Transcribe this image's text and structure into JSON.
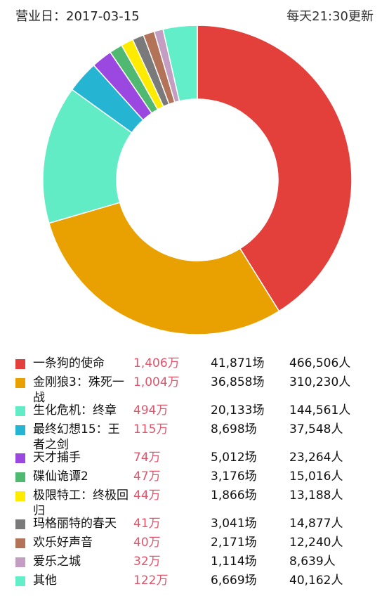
{
  "header": {
    "business_day": "营业日：2017-03-15",
    "update_note": "每天21:30更新"
  },
  "chart_data": {
    "type": "pie",
    "donut": true,
    "title": "",
    "categories": [
      "一条狗的使命",
      "金刚狼3：殊死一战",
      "生化危机：终章",
      "最终幻想15：王者之剑",
      "天才捕手",
      "碟仙诡谭2",
      "极限特工：终极回归",
      "玛格丽特的春天",
      "欢乐好声音",
      "爱乐之城",
      "其他"
    ],
    "values": [
      1406,
      1004,
      494,
      115,
      74,
      47,
      44,
      41,
      40,
      32,
      122
    ],
    "colors": [
      "#e3403c",
      "#e8a100",
      "#62ecc6",
      "#25b5d2",
      "#9b48e0",
      "#4fb971",
      "#ffeb00",
      "#7a7a7a",
      "#b27358",
      "#c39ec2",
      "#62eec8"
    ],
    "legend_position": "bottom"
  },
  "legend": [
    {
      "name": "一条狗的使命",
      "gross": "1,406万",
      "shows": "41,871场",
      "audience": "466,506人"
    },
    {
      "name": "金刚狼3：殊死一战",
      "gross": "1,004万",
      "shows": "36,858场",
      "audience": "310,230人"
    },
    {
      "name": "生化危机：终章",
      "gross": "494万",
      "shows": "20,133场",
      "audience": "144,561人"
    },
    {
      "name": "最终幻想15：王者之剑",
      "gross": "115万",
      "shows": "8,698场",
      "audience": "37,548人"
    },
    {
      "name": "天才捕手",
      "gross": "74万",
      "shows": "5,012场",
      "audience": "23,264人"
    },
    {
      "name": "碟仙诡谭2",
      "gross": "47万",
      "shows": "3,176场",
      "audience": "15,016人"
    },
    {
      "name": "极限特工：终极回归",
      "gross": "44万",
      "shows": "1,866场",
      "audience": "13,188人"
    },
    {
      "name": "玛格丽特的春天",
      "gross": "41万",
      "shows": "3,041场",
      "audience": "14,877人"
    },
    {
      "name": "欢乐好声音",
      "gross": "40万",
      "shows": "2,171场",
      "audience": "12,240人"
    },
    {
      "name": "爱乐之城",
      "gross": "32万",
      "shows": "1,114场",
      "audience": "8,639人"
    },
    {
      "name": "其他",
      "gross": "122万",
      "shows": "6,669场",
      "audience": "40,162人"
    }
  ]
}
